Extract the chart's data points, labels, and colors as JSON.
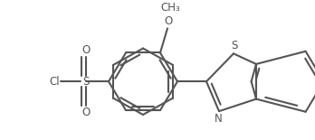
{
  "bg": "#ffffff",
  "lc": "#555555",
  "lw": 1.5,
  "fs": 8.5,
  "figsize": [
    3.48,
    1.55
  ],
  "dpi": 100,
  "xlim": [
    0,
    348
  ],
  "ylim": [
    0,
    155
  ]
}
